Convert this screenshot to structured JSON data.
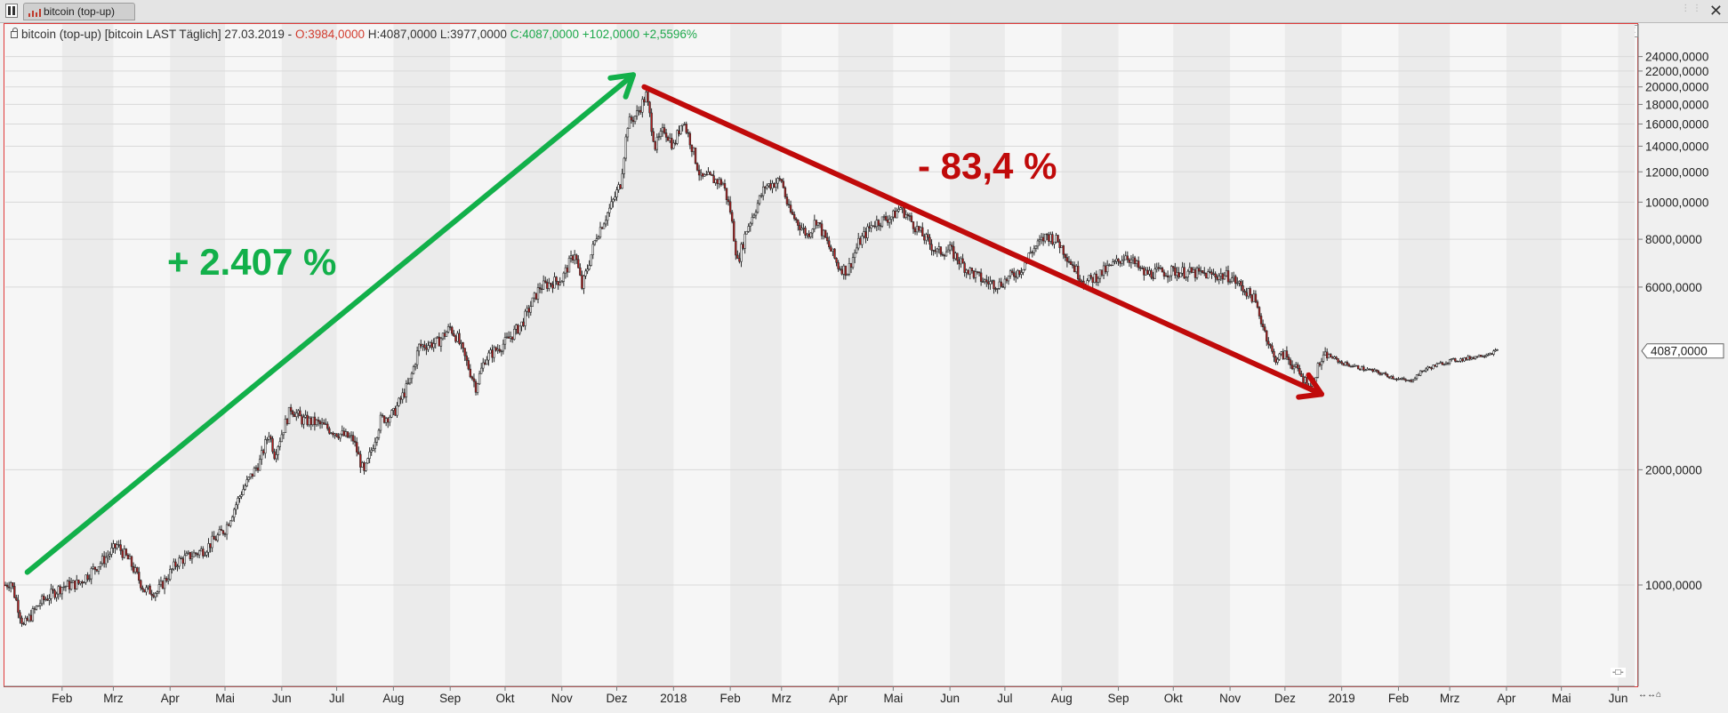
{
  "window": {
    "tab_label": "bitcoin (top-up)",
    "close_label": "✕"
  },
  "header": {
    "instrument": "bitcoin (top-up) [bitcoin LAST Täglich] 27.03.2019 -",
    "open": "O:3984,0000",
    "high_low": "H:4087,0000 L:3977,0000",
    "close_change": "C:4087,0000 +102,0000 +2,5596%",
    "close_button": "✕"
  },
  "colors": {
    "up_arrow": "#12b04a",
    "down_arrow": "#c00a0a",
    "frame": "#e03a3a",
    "candle_up": "#ffffff",
    "candle_down": "#b51e1e"
  },
  "chart_data": {
    "type": "line",
    "title": "",
    "ylabel": "",
    "xlabel": "",
    "scale": "log",
    "ylim": [
      550,
      30000
    ],
    "grid": true,
    "yticks": [
      "24000,0000",
      "22000,0000",
      "20000,0000",
      "18000,0000",
      "16000,0000",
      "14000,0000",
      "12000,0000",
      "10000,0000",
      "8000,0000",
      "6000,0000",
      "2000,0000",
      "1000,0000"
    ],
    "ytick_values": [
      24000,
      22000,
      20000,
      18000,
      16000,
      14000,
      12000,
      10000,
      8000,
      6000,
      2000,
      1000
    ],
    "last_price_label": "4087,0000",
    "last_price_value": 4087,
    "months": [
      {
        "label": "Feb",
        "date": "2017-02-01"
      },
      {
        "label": "Mrz",
        "date": "2017-03-01"
      },
      {
        "label": "Apr",
        "date": "2017-04-01"
      },
      {
        "label": "Mai",
        "date": "2017-05-01"
      },
      {
        "label": "Jun",
        "date": "2017-06-01"
      },
      {
        "label": "Jul",
        "date": "2017-07-01"
      },
      {
        "label": "Aug",
        "date": "2017-08-01"
      },
      {
        "label": "Sep",
        "date": "2017-09-01"
      },
      {
        "label": "Okt",
        "date": "2017-10-01"
      },
      {
        "label": "Nov",
        "date": "2017-11-01"
      },
      {
        "label": "Dez",
        "date": "2017-12-01"
      },
      {
        "label": "2018",
        "date": "2018-01-01"
      },
      {
        "label": "Feb",
        "date": "2018-02-01"
      },
      {
        "label": "Mrz",
        "date": "2018-03-01"
      },
      {
        "label": "Apr",
        "date": "2018-04-01"
      },
      {
        "label": "Mai",
        "date": "2018-05-01"
      },
      {
        "label": "Jun",
        "date": "2018-06-01"
      },
      {
        "label": "Jul",
        "date": "2018-07-01"
      },
      {
        "label": "Aug",
        "date": "2018-08-01"
      },
      {
        "label": "Sep",
        "date": "2018-09-01"
      },
      {
        "label": "Okt",
        "date": "2018-10-01"
      },
      {
        "label": "Nov",
        "date": "2018-11-01"
      },
      {
        "label": "Dez",
        "date": "2018-12-01"
      },
      {
        "label": "2019",
        "date": "2019-01-01"
      },
      {
        "label": "Feb",
        "date": "2019-02-01"
      },
      {
        "label": "Mrz",
        "date": "2019-03-01"
      },
      {
        "label": "Apr",
        "date": "2019-04-01"
      },
      {
        "label": "Mai",
        "date": "2019-05-01"
      },
      {
        "label": "Jun",
        "date": "2019-06-01"
      }
    ],
    "x_range": [
      "2017-01-01",
      "2019-06-10"
    ],
    "series": [
      {
        "x": [
          "2017-01-01",
          "2017-01-04",
          "2017-01-11",
          "2017-01-20",
          "2017-02-01",
          "2017-02-10",
          "2017-02-25",
          "2017-03-03",
          "2017-03-10",
          "2017-03-18",
          "2017-03-25",
          "2017-04-05",
          "2017-04-20",
          "2017-05-01",
          "2017-05-10",
          "2017-05-20",
          "2017-05-25",
          "2017-05-28",
          "2017-06-06",
          "2017-06-12",
          "2017-06-20",
          "2017-07-01",
          "2017-07-10",
          "2017-07-16",
          "2017-07-25",
          "2017-08-01",
          "2017-08-10",
          "2017-08-15",
          "2017-08-25",
          "2017-09-01",
          "2017-09-05",
          "2017-09-15",
          "2017-09-20",
          "2017-10-01",
          "2017-10-10",
          "2017-10-20",
          "2017-11-01",
          "2017-11-08",
          "2017-11-12",
          "2017-11-20",
          "2017-11-28",
          "2017-12-03",
          "2017-12-07",
          "2017-12-12",
          "2017-12-17",
          "2017-12-22",
          "2017-12-27",
          "2018-01-01",
          "2018-01-06",
          "2018-01-10",
          "2018-01-16",
          "2018-01-20",
          "2018-01-28",
          "2018-02-01",
          "2018-02-05",
          "2018-02-10",
          "2018-02-20",
          "2018-03-01",
          "2018-03-05",
          "2018-03-15",
          "2018-03-20",
          "2018-04-01",
          "2018-04-06",
          "2018-04-12",
          "2018-04-20",
          "2018-05-01",
          "2018-05-05",
          "2018-05-15",
          "2018-05-25",
          "2018-06-01",
          "2018-06-10",
          "2018-06-20",
          "2018-06-28",
          "2018-07-10",
          "2018-07-15",
          "2018-07-24",
          "2018-07-30",
          "2018-08-10",
          "2018-08-14",
          "2018-08-20",
          "2018-09-01",
          "2018-09-05",
          "2018-09-15",
          "2018-10-01",
          "2018-10-15",
          "2018-11-01",
          "2018-11-14",
          "2018-11-20",
          "2018-11-25",
          "2018-12-01",
          "2018-12-10",
          "2018-12-15",
          "2018-12-20",
          "2018-12-24",
          "2019-01-01",
          "2019-01-10",
          "2019-01-20",
          "2019-02-01",
          "2019-02-07",
          "2019-02-15",
          "2019-02-25",
          "2019-03-01",
          "2019-03-10",
          "2019-03-20",
          "2019-03-27"
        ],
        "values": [
          1000,
          1020,
          780,
          900,
          990,
          1010,
          1180,
          1270,
          1150,
          970,
          960,
          1150,
          1240,
          1400,
          1750,
          2100,
          2500,
          2200,
          2900,
          2700,
          2650,
          2500,
          2400,
          1950,
          2700,
          2800,
          3400,
          4200,
          4300,
          4700,
          4400,
          3300,
          3900,
          4300,
          4800,
          6000,
          6300,
          7400,
          6000,
          8200,
          9800,
          11200,
          16000,
          17000,
          19000,
          14000,
          15500,
          14000,
          16500,
          14500,
          11500,
          11600,
          11200,
          9500,
          6955,
          8500,
          11000,
          11400,
          9500,
          8200,
          9000,
          6800,
          6600,
          7800,
          8800,
          9200,
          9700,
          8400,
          7400,
          7500,
          6700,
          6200,
          6100,
          6700,
          7400,
          8200,
          7900,
          6500,
          6150,
          6400,
          7000,
          7300,
          6500,
          6600,
          6500,
          6400,
          5600,
          4600,
          3900,
          4000,
          3500,
          3300,
          3800,
          4000,
          3800,
          3700,
          3600,
          3450,
          3400,
          3650,
          3800,
          3850,
          3900,
          4000,
          4087
        ]
      }
    ],
    "annotations": [
      {
        "text": "+ 2.407 %",
        "color": "#12b04a",
        "from": [
          "2017-01-13",
          1080
        ],
        "to": [
          "2017-12-10",
          21500
        ]
      },
      {
        "text": "- 83,4 %",
        "color": "#c00a0a",
        "from": [
          "2017-12-16",
          20000
        ],
        "to": [
          "2018-12-21",
          3150
        ]
      }
    ]
  },
  "controls": {
    "scale_toggle": "-□-",
    "nav_buttons": "↔↔⌂"
  }
}
